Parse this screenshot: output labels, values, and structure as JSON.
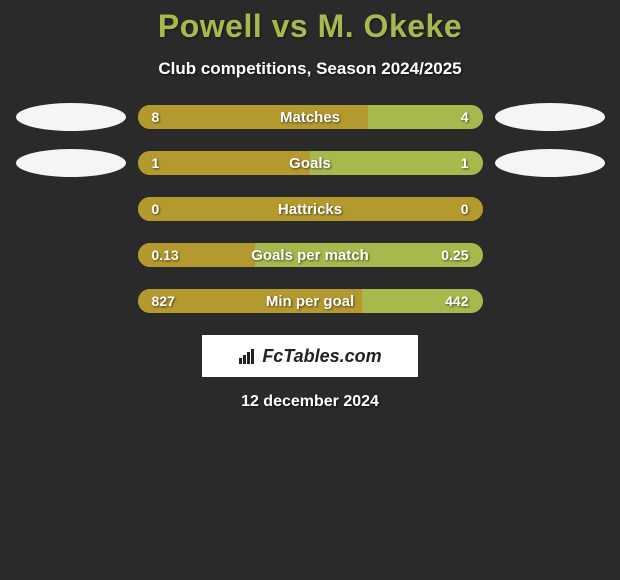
{
  "title": "Powell vs M. Okeke",
  "subtitle": "Club competitions, Season 2024/2025",
  "date": "12 december 2024",
  "brand": "FcTables.com",
  "colors": {
    "background": "#2a2a2a",
    "title_color": "#a9b84d",
    "text_color": "#ffffff",
    "bar_bg": "#a9b84d",
    "bar_fill": "#b49a2e",
    "ellipse_color": "#f5f5f5",
    "brand_bg": "#ffffff",
    "brand_text": "#222222"
  },
  "typography": {
    "title_fontsize": 32,
    "subtitle_fontsize": 17,
    "label_fontsize": 15,
    "value_fontsize": 14,
    "date_fontsize": 16
  },
  "stats": [
    {
      "label": "Matches",
      "left_val": "8",
      "right_val": "4",
      "left_pct": 66.7,
      "right_pct": 0,
      "show_ellipses": true
    },
    {
      "label": "Goals",
      "left_val": "1",
      "right_val": "1",
      "left_pct": 50,
      "right_pct": 0,
      "show_ellipses": true
    },
    {
      "label": "Hattricks",
      "left_val": "0",
      "right_val": "0",
      "left_pct": 100,
      "right_pct": 0,
      "show_ellipses": false
    },
    {
      "label": "Goals per match",
      "left_val": "0.13",
      "right_val": "0.25",
      "left_pct": 34,
      "right_pct": 0,
      "show_ellipses": false
    },
    {
      "label": "Min per goal",
      "left_val": "827",
      "right_val": "442",
      "left_pct": 65,
      "right_pct": 0,
      "show_ellipses": false
    }
  ]
}
